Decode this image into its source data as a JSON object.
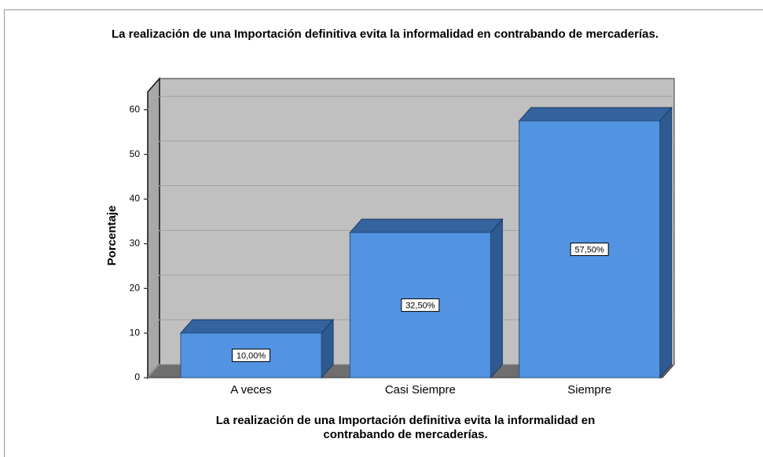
{
  "chart_data": {
    "type": "bar3d",
    "title": "La realización de una Importación definitiva evita la informalidad en contrabando de mercaderías.",
    "ylabel": "Porcentaje",
    "xlabel": [
      "La realización de una Importación definitiva evita la informalidad en",
      "contrabando de mercaderías."
    ],
    "categories": [
      "A veces",
      "Casi Siempre",
      "Siempre"
    ],
    "values": [
      10,
      32.5,
      57.5
    ],
    "value_labels": [
      "10,00%",
      "32,50%",
      "57,50%"
    ],
    "color": "#5294e2",
    "ylim": [
      0,
      64
    ],
    "yticks": [
      0,
      10,
      20,
      30,
      40,
      50,
      60
    ],
    "grid": true
  }
}
